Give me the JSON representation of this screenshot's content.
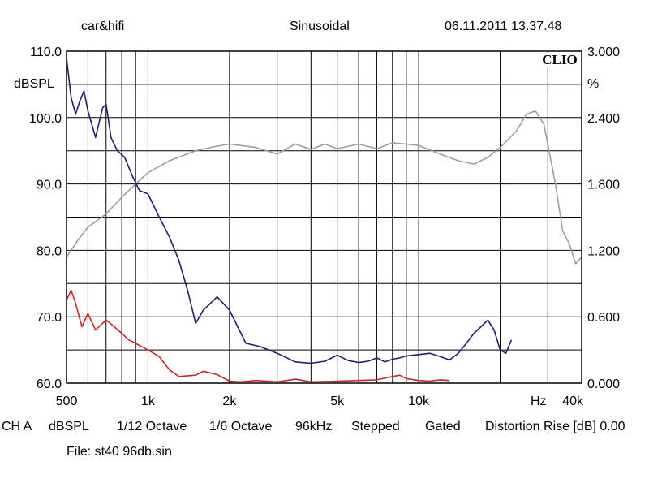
{
  "header": {
    "left": "car&hifi",
    "center": "Sinusoidal",
    "right": "06.11.2011 13.37.48"
  },
  "badge": "CLIO",
  "axes": {
    "left_unit": "dBSPL",
    "right_unit": "%",
    "x_unit": "Hz"
  },
  "settings": {
    "channel": "CH A",
    "unit": "dBSPL",
    "smoothing": "1/12 Octave",
    "resolution": "1/6 Octave",
    "rate": "96kHz",
    "mode": "Stepped",
    "window": "Gated",
    "distortion": "Distortion Rise [dB] 0.00"
  },
  "file": "File: st40 96db.sin",
  "chart_data": {
    "type": "line",
    "x_scale": "log",
    "xlim": [
      500,
      40000
    ],
    "ylim": [
      60,
      110
    ],
    "y2lim": [
      0,
      3
    ],
    "grid": true,
    "y_ticks": [
      "110.0",
      "100.0",
      "90.0",
      "80.0",
      "70.0",
      "60.0"
    ],
    "y2_ticks": [
      "3.000",
      "2.400",
      "1.800",
      "1.200",
      "0.600",
      "0.000"
    ],
    "x_tick_labels": [
      {
        "x": 500,
        "label": "500"
      },
      {
        "x": 1000,
        "label": "1k"
      },
      {
        "x": 2000,
        "label": "2k"
      },
      {
        "x": 5000,
        "label": "5k"
      },
      {
        "x": 10000,
        "label": "10k"
      },
      {
        "x": 40000,
        "label": "40k"
      }
    ],
    "series": [
      {
        "axis": "left",
        "color": "#9e9e9e",
        "points": [
          [
            500,
            79
          ],
          [
            550,
            81.5
          ],
          [
            600,
            83.5
          ],
          [
            700,
            85.5
          ],
          [
            800,
            88
          ],
          [
            900,
            90
          ],
          [
            1000,
            91.7
          ],
          [
            1200,
            93.5
          ],
          [
            1500,
            95
          ],
          [
            1800,
            95.7
          ],
          [
            2000,
            96
          ],
          [
            2500,
            95.5
          ],
          [
            3000,
            94.5
          ],
          [
            3500,
            96
          ],
          [
            4000,
            95.2
          ],
          [
            4500,
            96
          ],
          [
            5000,
            95.3
          ],
          [
            6000,
            96
          ],
          [
            7000,
            95.3
          ],
          [
            8000,
            96.2
          ],
          [
            9000,
            96
          ],
          [
            10000,
            95.8
          ],
          [
            12000,
            94.5
          ],
          [
            14000,
            93.5
          ],
          [
            16000,
            93
          ],
          [
            18000,
            94
          ],
          [
            20000,
            95.5
          ],
          [
            23000,
            98
          ],
          [
            25000,
            100.5
          ],
          [
            27000,
            101
          ],
          [
            29000,
            99
          ],
          [
            32000,
            90
          ],
          [
            34000,
            83
          ],
          [
            36000,
            81
          ],
          [
            38000,
            78
          ],
          [
            40000,
            79
          ]
        ]
      },
      {
        "axis": "left",
        "color": "#1e1e6e",
        "points": [
          [
            500,
            109
          ],
          [
            520,
            103
          ],
          [
            540,
            100.5
          ],
          [
            560,
            102.5
          ],
          [
            580,
            104
          ],
          [
            600,
            101
          ],
          [
            640,
            97
          ],
          [
            680,
            101.5
          ],
          [
            700,
            102
          ],
          [
            730,
            97
          ],
          [
            770,
            95
          ],
          [
            820,
            94
          ],
          [
            880,
            91
          ],
          [
            930,
            89
          ],
          [
            1000,
            88.5
          ],
          [
            1100,
            85
          ],
          [
            1200,
            82
          ],
          [
            1300,
            78.5
          ],
          [
            1400,
            74
          ],
          [
            1500,
            69
          ],
          [
            1600,
            71
          ],
          [
            1700,
            72
          ],
          [
            1800,
            73
          ],
          [
            2000,
            71
          ],
          [
            2300,
            66
          ],
          [
            2600,
            65.5
          ],
          [
            3000,
            64.5
          ],
          [
            3500,
            63.2
          ],
          [
            4000,
            63
          ],
          [
            4500,
            63.3
          ],
          [
            5000,
            64.2
          ],
          [
            5500,
            63.4
          ],
          [
            6000,
            63.1
          ],
          [
            6500,
            63.3
          ],
          [
            7000,
            63.8
          ],
          [
            7500,
            63.2
          ],
          [
            8000,
            63.6
          ],
          [
            8500,
            63.8
          ],
          [
            9000,
            64.1
          ],
          [
            10000,
            64.3
          ],
          [
            11000,
            64.5
          ],
          [
            12000,
            64
          ],
          [
            13000,
            63.5
          ],
          [
            14000,
            64.5
          ],
          [
            15000,
            66
          ],
          [
            16000,
            67.5
          ],
          [
            17000,
            68.5
          ],
          [
            18000,
            69.5
          ],
          [
            19000,
            68
          ],
          [
            20000,
            65
          ],
          [
            21000,
            64.5
          ],
          [
            22000,
            66.5
          ]
        ]
      },
      {
        "axis": "left",
        "color": "#c62828",
        "points": [
          [
            500,
            72.5
          ],
          [
            520,
            74
          ],
          [
            540,
            72
          ],
          [
            570,
            68.5
          ],
          [
            600,
            70.5
          ],
          [
            640,
            68
          ],
          [
            700,
            69.5
          ],
          [
            750,
            68.5
          ],
          [
            800,
            67.5
          ],
          [
            850,
            66.5
          ],
          [
            900,
            66
          ],
          [
            1000,
            65
          ],
          [
            1100,
            64
          ],
          [
            1200,
            62
          ],
          [
            1300,
            61
          ],
          [
            1500,
            61.2
          ],
          [
            1600,
            61.8
          ],
          [
            1800,
            61.3
          ],
          [
            2000,
            60.3
          ],
          [
            2200,
            60.2
          ],
          [
            2500,
            60.4
          ],
          [
            3000,
            60.2
          ],
          [
            3500,
            60.6
          ],
          [
            4000,
            60.2
          ],
          [
            5000,
            60.3
          ],
          [
            6000,
            60.4
          ],
          [
            7000,
            60.5
          ],
          [
            8000,
            61
          ],
          [
            8500,
            61.2
          ],
          [
            9000,
            60.7
          ],
          [
            10000,
            60.4
          ],
          [
            11000,
            60.3
          ],
          [
            12000,
            60.5
          ],
          [
            13000,
            60.4
          ]
        ]
      }
    ]
  }
}
